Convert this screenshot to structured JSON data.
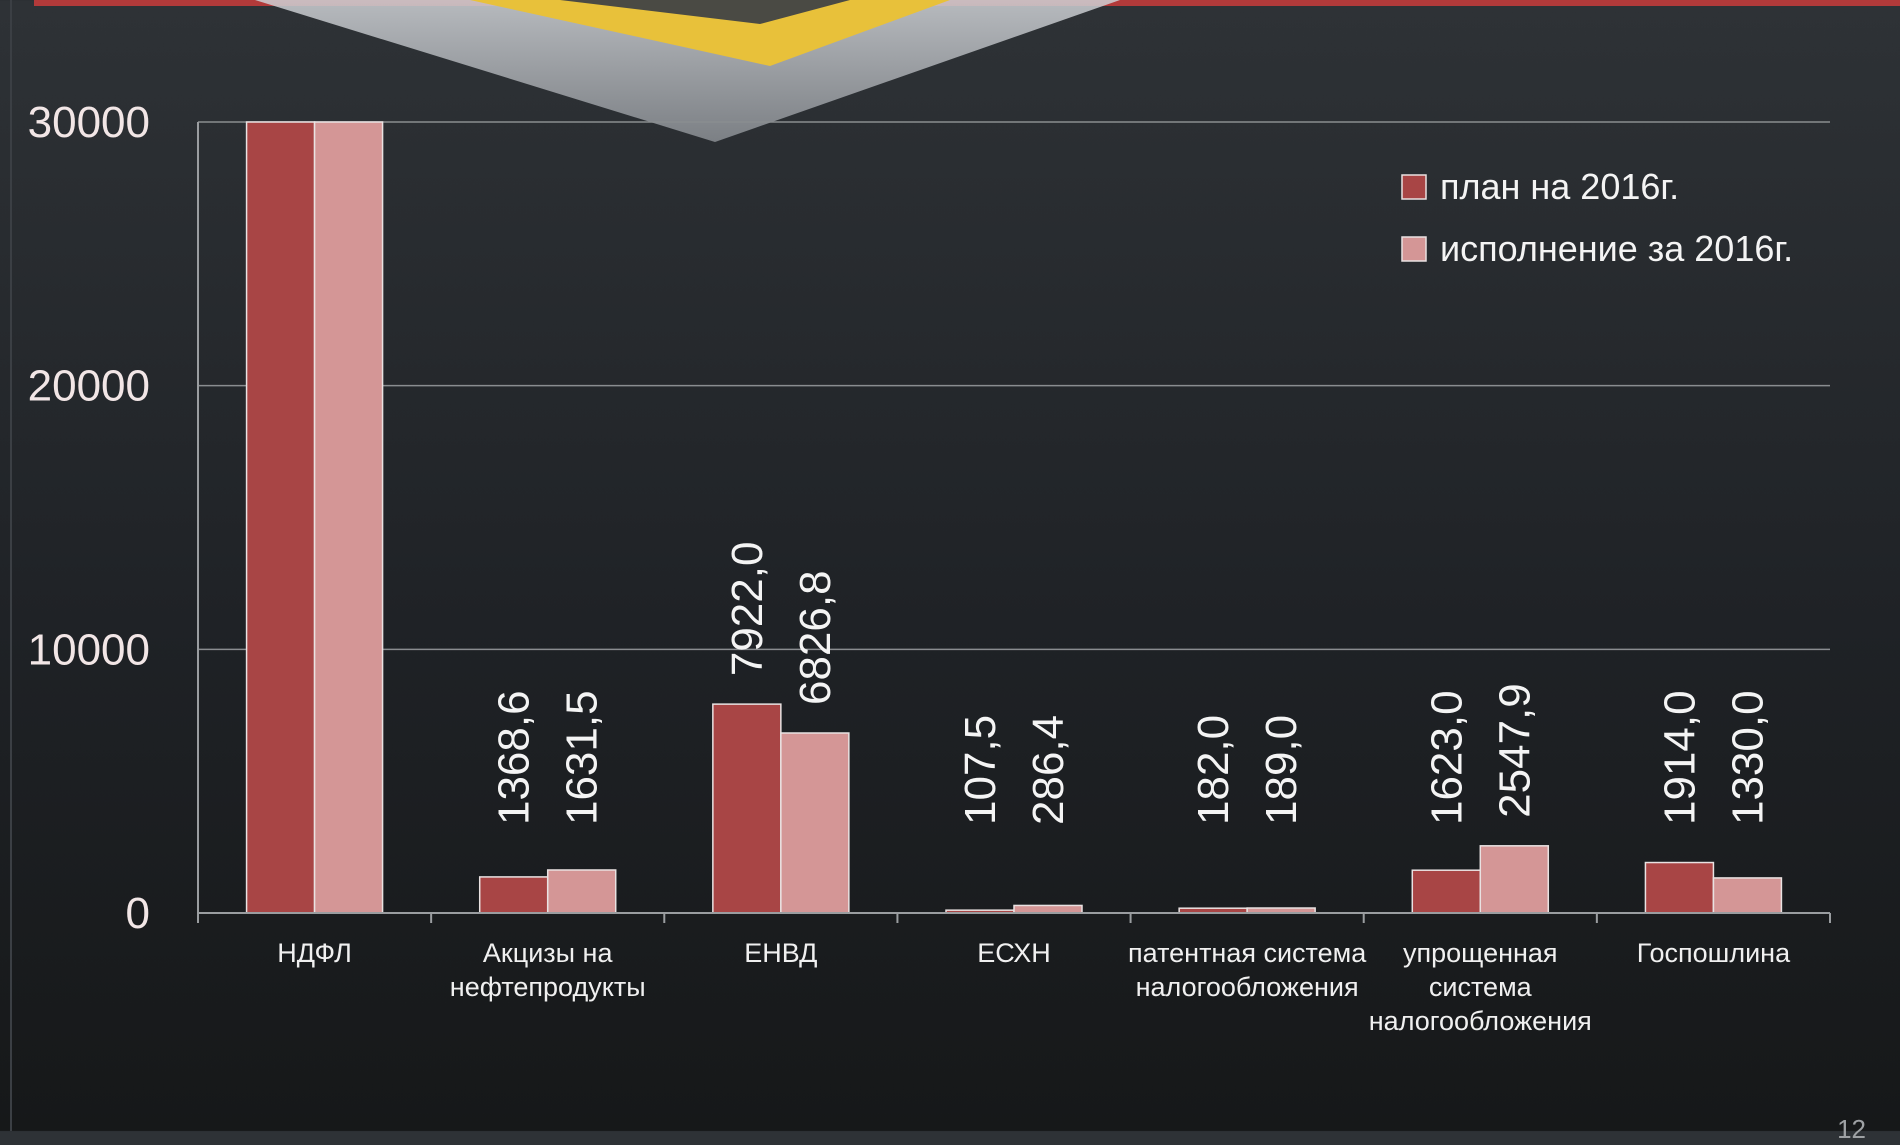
{
  "colors": {
    "plan": "#a84545",
    "actual": "#d49696",
    "grid": "#8a8d90",
    "axis": "#9a9da0"
  },
  "chart_data": {
    "type": "bar",
    "categories": [
      [
        "НДФЛ"
      ],
      [
        "Акцизы на",
        "нефтепродукты"
      ],
      [
        "ЕНВД"
      ],
      [
        "ЕСХН"
      ],
      [
        "патентная система",
        "налогообложения"
      ],
      [
        "упрощенная",
        "система",
        "налогообложения"
      ],
      [
        "Госпошлина"
      ]
    ],
    "series": [
      {
        "name": "план на 2016г.",
        "values": [
          30000,
          1368.6,
          7922.0,
          107.5,
          182.0,
          1623.0,
          1914.0
        ],
        "labels": [
          "",
          "1368,6",
          "7922,0",
          "107,5",
          "182,0",
          "1623,0",
          "1914,0"
        ]
      },
      {
        "name": "исполнение за 2016г.",
        "values": [
          30000,
          1631.5,
          6826.8,
          286.4,
          189.0,
          2547.9,
          1330.0
        ],
        "labels": [
          "",
          "1631,5",
          "6826,8",
          "286,4",
          "189,0",
          "2547,9",
          "1330,0"
        ]
      }
    ],
    "yticks": [
      "0",
      "10000",
      "20000",
      "30000"
    ],
    "ytick_values": [
      0,
      10000,
      20000,
      30000
    ],
    "ylim": [
      0,
      30000
    ],
    "grid": true,
    "legend_position": "top-right",
    "data_label_orientation": "vertical"
  },
  "page": {
    "number": "12"
  }
}
